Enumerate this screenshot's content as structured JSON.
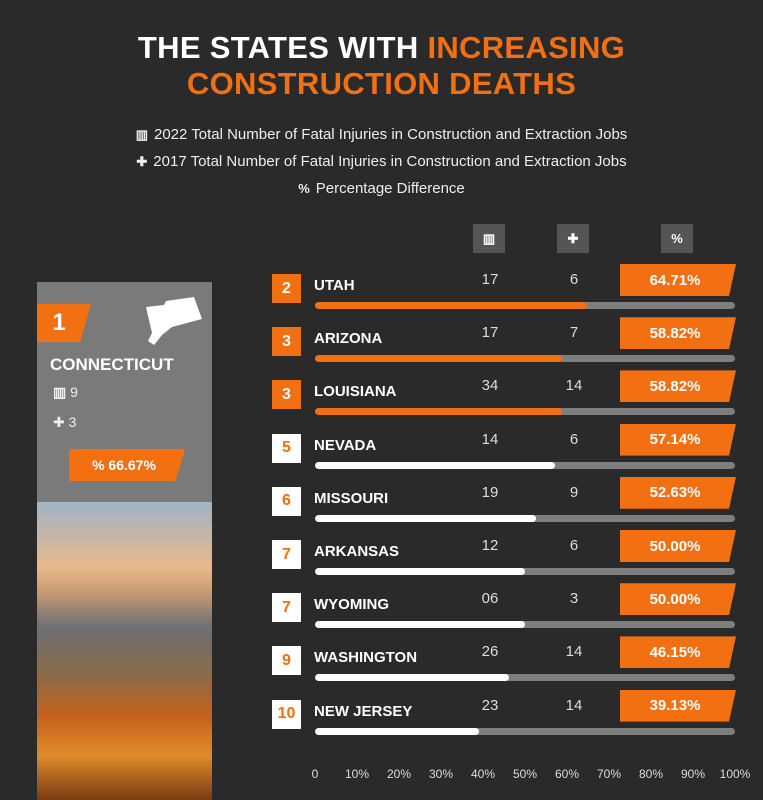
{
  "title": {
    "line1_white": "THE STATES WITH ",
    "line1_orange": "INCREASING",
    "line2": "CONSTRUCTION DEATHS"
  },
  "legend": [
    {
      "icon": "building-icon",
      "text": "2022 Total Number of Fatal Injuries in Construction and Extraction Jobs"
    },
    {
      "icon": "medical-kit-icon",
      "text": "2017 Total Number of Fatal Injuries in Construction and Extraction Jobs"
    },
    {
      "icon": "percent-icon",
      "text": "Percentage Difference"
    }
  ],
  "colors": {
    "background": "#2a2a2a",
    "orange": "#f26f12",
    "track": "#7e7e7e",
    "white": "#ffffff"
  },
  "featured": {
    "rank": "1",
    "state": "CONNECTICUT",
    "v2022": "9",
    "v2017": "3",
    "pct": "66.67%",
    "pct_icon": "%"
  },
  "chart_data": {
    "type": "bar",
    "orientation": "horizontal",
    "categories": [
      "UTAH",
      "ARIZONA",
      "LOUISIANA",
      "NEVADA",
      "MISSOURI",
      "ARKANSAS",
      "WYOMING",
      "WASHINGTON",
      "NEW JERSEY"
    ],
    "ranks": [
      "2",
      "3",
      "3",
      "5",
      "6",
      "7",
      "7",
      "9",
      "10"
    ],
    "v2022": [
      "17",
      "17",
      "34",
      "14",
      "19",
      "12",
      "06",
      "26",
      "23"
    ],
    "v2017": [
      "6",
      "7",
      "14",
      "6",
      "9",
      "6",
      "3",
      "14",
      "14"
    ],
    "values": [
      64.71,
      58.82,
      58.82,
      57.14,
      52.63,
      50.0,
      50.0,
      46.15,
      39.13
    ],
    "labels": [
      "64.71%",
      "58.82%",
      "58.82%",
      "57.14%",
      "52.63%",
      "50.00%",
      "50.00%",
      "46.15%",
      "39.13%"
    ],
    "highlight_top": 3,
    "xlim": [
      0,
      100
    ],
    "xticks": [
      "0",
      "10%",
      "20%",
      "30%",
      "40%",
      "50%",
      "60%",
      "70%",
      "80%",
      "90%",
      "100%"
    ]
  }
}
